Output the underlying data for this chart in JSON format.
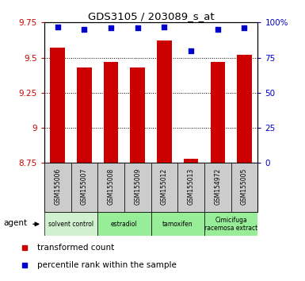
{
  "title": "GDS3105 / 203089_s_at",
  "samples": [
    "GSM155006",
    "GSM155007",
    "GSM155008",
    "GSM155009",
    "GSM155012",
    "GSM155013",
    "GSM154972",
    "GSM155005"
  ],
  "red_values": [
    9.57,
    9.43,
    9.47,
    9.43,
    9.62,
    8.78,
    9.47,
    9.52
  ],
  "blue_values": [
    97,
    95,
    96,
    96,
    97,
    80,
    95,
    96
  ],
  "ylim_left": [
    8.75,
    9.75
  ],
  "ylim_right": [
    0,
    100
  ],
  "yticks_left": [
    8.75,
    9.0,
    9.25,
    9.5,
    9.75
  ],
  "yticks_right": [
    0,
    25,
    50,
    75,
    100
  ],
  "ytick_labels_left": [
    "8.75",
    "9",
    "9.25",
    "9.5",
    "9.75"
  ],
  "ytick_labels_right": [
    "0",
    "25",
    "50",
    "75",
    "100%"
  ],
  "group_configs": [
    {
      "start": 0,
      "end": 1,
      "label": "solvent control",
      "color": "#d0f0d0"
    },
    {
      "start": 2,
      "end": 3,
      "label": "estradiol",
      "color": "#98ee98"
    },
    {
      "start": 4,
      "end": 5,
      "label": "tamoxifen",
      "color": "#98ee98"
    },
    {
      "start": 6,
      "end": 7,
      "label": "Cimicifuga\nracemosa extract",
      "color": "#98ee98"
    }
  ],
  "red_color": "#cc0000",
  "blue_color": "#0000cc",
  "bar_width": 0.55,
  "background_plot": "#ffffff",
  "sample_box_color": "#cccccc",
  "agent_label": "agent",
  "legend_red": "transformed count",
  "legend_blue": "percentile rank within the sample"
}
